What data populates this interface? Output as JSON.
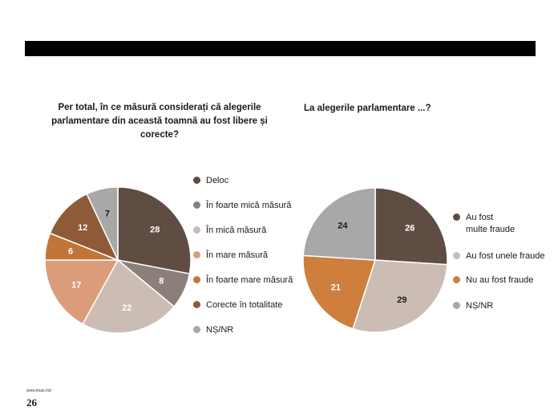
{
  "page": {
    "page_number": "26",
    "site": "www.imas.md"
  },
  "colors": {
    "topbar": "#000000"
  },
  "chart_data": [
    {
      "type": "pie",
      "title": "Per total, în ce măsură considerați că alegerile parlamentare din această toamnă au fost libere și corecte?",
      "slices": [
        {
          "label": "Deloc",
          "value": 28,
          "color": "#5f4c43"
        },
        {
          "label": "În foarte mică măsură",
          "value": 8,
          "color": "#8b7f79"
        },
        {
          "label": "În mică măsură",
          "value": 22,
          "color": "#cbbcb4"
        },
        {
          "label": "În mare măsură",
          "value": 17,
          "color": "#da9c7a"
        },
        {
          "label": "În foarte mare măsură",
          "value": 6,
          "color": "#c2753a"
        },
        {
          "label": "Corecte în totalitate",
          "value": 12,
          "color": "#8e5a38"
        },
        {
          "label": "NȘ/NR",
          "value": 7,
          "color": "#a8a8a8"
        }
      ],
      "legend": "right"
    },
    {
      "type": "pie",
      "title": "La alegerile parlamentare ...?",
      "slices": [
        {
          "label": "Au fost multe fraude",
          "value": 26,
          "color": "#5f4c43"
        },
        {
          "label": "Au fost unele fraude",
          "value": 29,
          "color": "#cbbcb4"
        },
        {
          "label": "Nu au fost fraude",
          "value": 21,
          "color": "#cd7f3b"
        },
        {
          "label": "NȘ/NR",
          "value": 24,
          "color": "#a8a8a8"
        }
      ],
      "legend": "right"
    }
  ]
}
